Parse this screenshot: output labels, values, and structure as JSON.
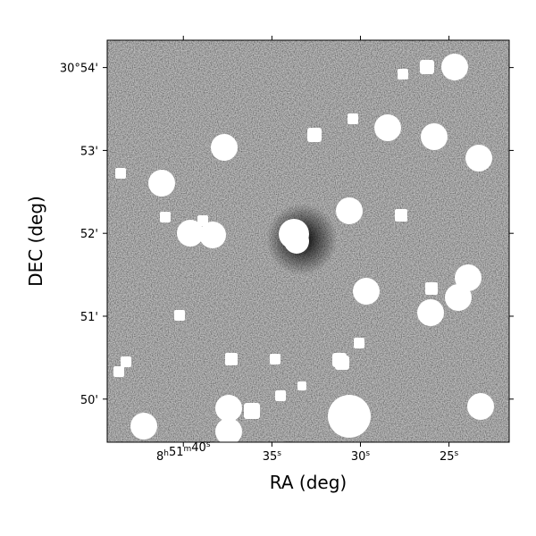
{
  "chart_data": {
    "type": "image",
    "xlabel": "RA (deg)",
    "ylabel": "DEC (deg)",
    "xlim": [
      44.3,
      21.6
    ],
    "xticks": [
      {
        "value": 40,
        "label": "8h51m40s"
      },
      {
        "value": 35,
        "label": "35s"
      },
      {
        "value": 30,
        "label": "30s"
      },
      {
        "value": 25,
        "label": "25s"
      }
    ],
    "ylim": [
      49.48,
      54.33
    ],
    "yticks": [
      {
        "value": 50,
        "label": "50'"
      },
      {
        "value": 51,
        "label": "51'"
      },
      {
        "value": 52,
        "label": "52'"
      },
      {
        "value": 53,
        "label": "53'"
      },
      {
        "value": 54,
        "label": "30°54'"
      }
    ]
  }
}
